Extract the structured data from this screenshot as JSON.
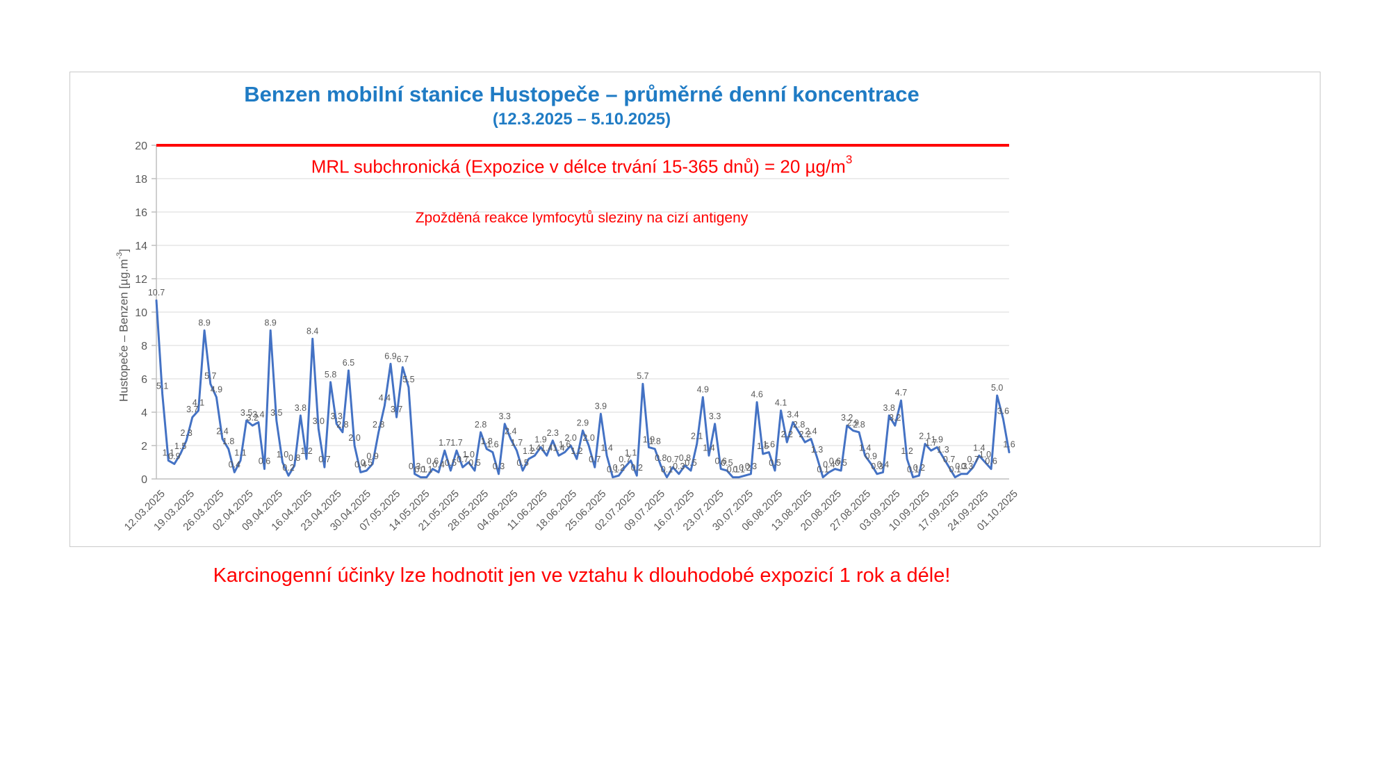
{
  "header": {
    "title": "Benzen mobilní stanice Hustopeče – průměrné denní koncentrace",
    "subtitle": "(12.3.2025 – 5.10.2025)"
  },
  "annotations": {
    "mrl_text": "MRL subchronická (Expozice v délce trvání 15-365 dnů) = 20 µg/m",
    "mrl_sup": "3",
    "note": "Zpožděná reakce lymfocytů sleziny na cizí antigeny",
    "caption": "Karcinogenní účinky lze hodnotit jen ve vztahu k dlouhodobé expozicí 1 rok a déle!"
  },
  "y_axis": {
    "title_main": "Hustopeče – Benzen  [µg.m",
    "title_sup": "-3",
    "title_close": "]"
  },
  "colors": {
    "title_blue": "#1f7bc4",
    "line_blue": "#4472c4",
    "red": "#ff0000",
    "grid": "#d9d9d9",
    "axis_line": "#bfbfbf",
    "label_gray": "#595959"
  },
  "chart_data": {
    "type": "line",
    "title": "Benzen mobilní stanice Hustopeče – průměrné denní koncentrace (12.3.2025 – 5.10.2025)",
    "ylabel": "Hustopeče – Benzen [µg.m-3]",
    "ylim": [
      0,
      20
    ],
    "y_ticks": [
      0,
      2,
      4,
      6,
      8,
      10,
      12,
      14,
      16,
      18,
      20
    ],
    "grid": true,
    "data_labels": true,
    "reference_line": {
      "value": 20,
      "label": "MRL subchronická (Expozice v délce trvání 15-365 dnů) = 20 µg/m3"
    },
    "x_tick_labels": [
      "12.03.2025",
      "19.03.2025",
      "26.03.2025",
      "02.04.2025",
      "09.04.2025",
      "16.04.2025",
      "23.04.2025",
      "30.04.2025",
      "07.05.2025",
      "14.05.2025",
      "21.05.2025",
      "28.05.2025",
      "04.06.2025",
      "11.06.2025",
      "18.06.2025",
      "25.06.2025",
      "02.07.2025",
      "09.07.2025",
      "16.07.2025",
      "23.07.2025",
      "30.07.2025",
      "06.08.2025",
      "13.08.2025",
      "20.08.2025",
      "27.08.2025",
      "03.09.2025",
      "10.09.2025",
      "17.09.2025",
      "24.09.2025",
      "01.10.2025"
    ],
    "series": [
      {
        "name": "Hustopeče – Benzen",
        "values": [
          10.7,
          5.1,
          1.1,
          0.9,
          1.5,
          2.3,
          3.7,
          4.1,
          8.9,
          5.7,
          4.9,
          2.4,
          1.8,
          0.4,
          1.1,
          3.5,
          3.2,
          3.4,
          0.6,
          8.9,
          3.5,
          1.0,
          0.2,
          0.8,
          3.8,
          1.2,
          8.4,
          3.0,
          0.7,
          5.8,
          3.3,
          2.8,
          6.5,
          2.0,
          0.4,
          0.5,
          0.9,
          2.8,
          4.4,
          6.9,
          3.7,
          6.7,
          5.5,
          0.3,
          0.1,
          0.1,
          0.6,
          0.4,
          1.7,
          0.5,
          1.7,
          0.7,
          1.0,
          0.5,
          2.8,
          1.8,
          1.6,
          0.3,
          3.3,
          2.4,
          1.7,
          0.5,
          1.2,
          1.4,
          1.9,
          1.4,
          2.3,
          1.4,
          1.6,
          2.0,
          1.2,
          2.9,
          2.0,
          0.7,
          3.9,
          1.4,
          0.1,
          0.2,
          0.7,
          1.1,
          0.2,
          5.7,
          1.9,
          1.8,
          0.8,
          0.1,
          0.7,
          0.3,
          0.8,
          0.5,
          2.1,
          4.9,
          1.4,
          3.3,
          0.6,
          0.5,
          0.1,
          0.1,
          0.2,
          0.3,
          4.6,
          1.5,
          1.6,
          0.5,
          4.1,
          2.2,
          3.4,
          2.8,
          2.2,
          2.4,
          1.3,
          0.1,
          0.4,
          0.6,
          0.5,
          3.2,
          2.9,
          2.8,
          1.4,
          0.9,
          0.3,
          0.4,
          3.8,
          3.2,
          4.7,
          1.2,
          0.1,
          0.2,
          2.1,
          1.7,
          1.9,
          1.3,
          0.7,
          0.1,
          0.3,
          0.3,
          0.7,
          1.4,
          1.0,
          0.6,
          5.0,
          3.6,
          1.6
        ]
      }
    ]
  }
}
